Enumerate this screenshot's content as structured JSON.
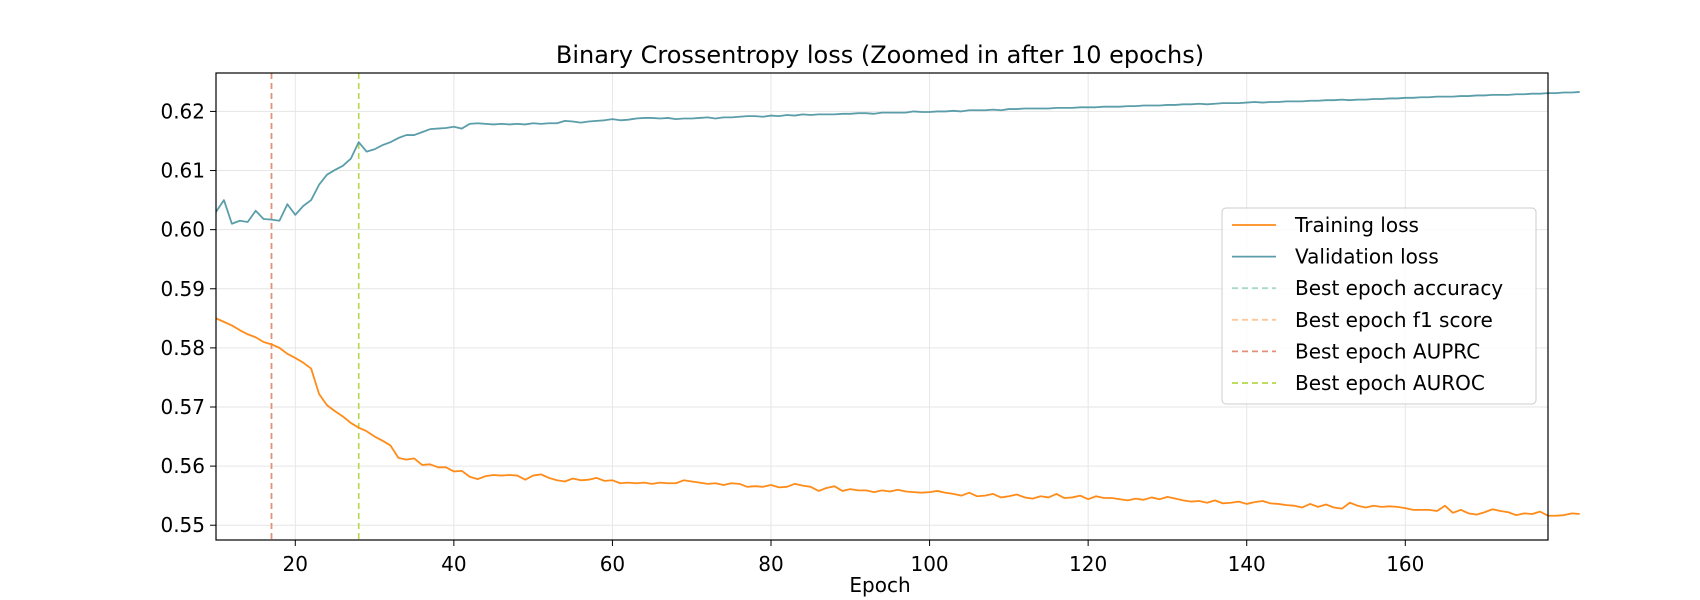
{
  "chart_data": {
    "type": "line",
    "title": "Binary Crossentropy loss (Zoomed in after 10 epochs)",
    "xlabel": "Epoch",
    "ylabel": "",
    "xlim": [
      10,
      178
    ],
    "ylim": [
      0.5475,
      0.6265
    ],
    "x_ticks": [
      20,
      40,
      60,
      80,
      100,
      120,
      140,
      160
    ],
    "y_ticks": [
      0.55,
      0.56,
      0.57,
      0.58,
      0.59,
      0.6,
      0.61,
      0.62
    ],
    "x_tick_labels": [
      "20",
      "40",
      "60",
      "80",
      "100",
      "120",
      "140",
      "160"
    ],
    "y_tick_labels": [
      "0.55",
      "0.56",
      "0.57",
      "0.58",
      "0.59",
      "0.60",
      "0.61",
      "0.62"
    ],
    "grid": true,
    "legend_position": "center-right",
    "x_start": 10,
    "series": [
      {
        "name": "Training loss",
        "color": "#ff8c1a",
        "values": [
          0.585,
          0.5844,
          0.5838,
          0.583,
          0.5823,
          0.5818,
          0.581,
          0.5806,
          0.58,
          0.579,
          0.5783,
          0.5775,
          0.5765,
          0.5722,
          0.5703,
          0.5693,
          0.5684,
          0.5673,
          0.5665,
          0.5659,
          0.565,
          0.5643,
          0.5635,
          0.5614,
          0.5611,
          0.5613,
          0.5602,
          0.5603,
          0.5598,
          0.5598,
          0.5591,
          0.5592,
          0.5582,
          0.5578,
          0.5583,
          0.5585,
          0.5584,
          0.5585,
          0.5584,
          0.5577,
          0.5584,
          0.5586,
          0.558,
          0.5576,
          0.5574,
          0.5579,
          0.5576,
          0.5577,
          0.558,
          0.5575,
          0.5576,
          0.5571,
          0.5572,
          0.5571,
          0.5572,
          0.557,
          0.5572,
          0.5571,
          0.5571,
          0.5576,
          0.5574,
          0.5572,
          0.557,
          0.5571,
          0.5568,
          0.5571,
          0.557,
          0.5565,
          0.5566,
          0.5565,
          0.5568,
          0.5564,
          0.5565,
          0.557,
          0.5567,
          0.5565,
          0.5558,
          0.5563,
          0.5566,
          0.5558,
          0.5561,
          0.5559,
          0.5559,
          0.5556,
          0.5559,
          0.5557,
          0.556,
          0.5557,
          0.5556,
          0.5555,
          0.5556,
          0.5558,
          0.5555,
          0.5553,
          0.555,
          0.5555,
          0.5549,
          0.555,
          0.5553,
          0.5547,
          0.5549,
          0.5552,
          0.5547,
          0.5545,
          0.5549,
          0.5547,
          0.5553,
          0.5546,
          0.5547,
          0.555,
          0.5544,
          0.5549,
          0.5546,
          0.5546,
          0.5544,
          0.5542,
          0.5545,
          0.5543,
          0.5547,
          0.5544,
          0.5548,
          0.5545,
          0.5542,
          0.554,
          0.5541,
          0.5538,
          0.5542,
          0.5537,
          0.5538,
          0.554,
          0.5536,
          0.5539,
          0.5541,
          0.5537,
          0.5536,
          0.5534,
          0.5533,
          0.553,
          0.5536,
          0.5531,
          0.5535,
          0.553,
          0.5528,
          0.5538,
          0.5533,
          0.553,
          0.5533,
          0.5531,
          0.5532,
          0.5531,
          0.5529,
          0.5526,
          0.5526,
          0.5526,
          0.5524,
          0.5533,
          0.5521,
          0.5526,
          0.552,
          0.5518,
          0.5522,
          0.5527,
          0.5524,
          0.5522,
          0.5517,
          0.552,
          0.5519,
          0.5523,
          0.5516,
          0.5516,
          0.5517,
          0.552,
          0.5519
        ]
      },
      {
        "name": "Validation loss",
        "color": "#5b9eaa",
        "values": [
          0.603,
          0.605,
          0.601,
          0.6015,
          0.6013,
          0.6032,
          0.6018,
          0.6017,
          0.6015,
          0.6043,
          0.6025,
          0.604,
          0.605,
          0.6076,
          0.6093,
          0.6101,
          0.6108,
          0.612,
          0.6148,
          0.6132,
          0.6136,
          0.6143,
          0.6148,
          0.6155,
          0.616,
          0.616,
          0.6165,
          0.617,
          0.6171,
          0.6172,
          0.6174,
          0.6171,
          0.6179,
          0.618,
          0.6179,
          0.6178,
          0.6179,
          0.6178,
          0.6179,
          0.6178,
          0.618,
          0.6179,
          0.618,
          0.618,
          0.6184,
          0.6183,
          0.6181,
          0.6183,
          0.6184,
          0.6185,
          0.6187,
          0.6185,
          0.6186,
          0.6188,
          0.6189,
          0.6189,
          0.6188,
          0.6189,
          0.6187,
          0.6188,
          0.6188,
          0.6189,
          0.619,
          0.6188,
          0.619,
          0.619,
          0.6191,
          0.6192,
          0.6192,
          0.6191,
          0.6193,
          0.6192,
          0.6194,
          0.6193,
          0.6195,
          0.6194,
          0.6195,
          0.6195,
          0.6195,
          0.6196,
          0.6196,
          0.6197,
          0.6197,
          0.6196,
          0.6198,
          0.6198,
          0.6198,
          0.6198,
          0.62,
          0.6199,
          0.6199,
          0.62,
          0.62,
          0.6201,
          0.62,
          0.6202,
          0.6202,
          0.6202,
          0.6203,
          0.6202,
          0.6204,
          0.6204,
          0.6205,
          0.6205,
          0.6205,
          0.6205,
          0.6206,
          0.6206,
          0.6206,
          0.6207,
          0.6207,
          0.6207,
          0.6208,
          0.6208,
          0.6208,
          0.6209,
          0.6209,
          0.621,
          0.621,
          0.621,
          0.6211,
          0.6211,
          0.6212,
          0.6212,
          0.6213,
          0.6212,
          0.6213,
          0.6214,
          0.6214,
          0.6214,
          0.6215,
          0.6216,
          0.6215,
          0.6216,
          0.6216,
          0.6217,
          0.6217,
          0.6217,
          0.6218,
          0.6218,
          0.6219,
          0.6219,
          0.622,
          0.6219,
          0.622,
          0.622,
          0.6221,
          0.6221,
          0.6222,
          0.6222,
          0.6223,
          0.6223,
          0.6224,
          0.6224,
          0.6225,
          0.6225,
          0.6225,
          0.6226,
          0.6226,
          0.6227,
          0.6227,
          0.6228,
          0.6228,
          0.6228,
          0.6229,
          0.6229,
          0.623,
          0.623,
          0.6231,
          0.6231,
          0.6232,
          0.6232,
          0.6233
        ]
      }
    ],
    "vlines": [
      {
        "name": "Best epoch accuracy",
        "x": 17,
        "color": "#a8d8cc",
        "legend_color": "#a8d8cc"
      },
      {
        "name": "Best epoch f1 score",
        "x": 17,
        "color": "#ffc89a",
        "legend_color": "#ffc89a"
      },
      {
        "name": "Best epoch AUPRC",
        "x": 17,
        "color": "#e3907a",
        "legend_color": "#e3907a"
      },
      {
        "name": "Best epoch AUROC",
        "x": 28,
        "color": "#b5d84a",
        "legend_color": "#b5d84a"
      }
    ]
  }
}
